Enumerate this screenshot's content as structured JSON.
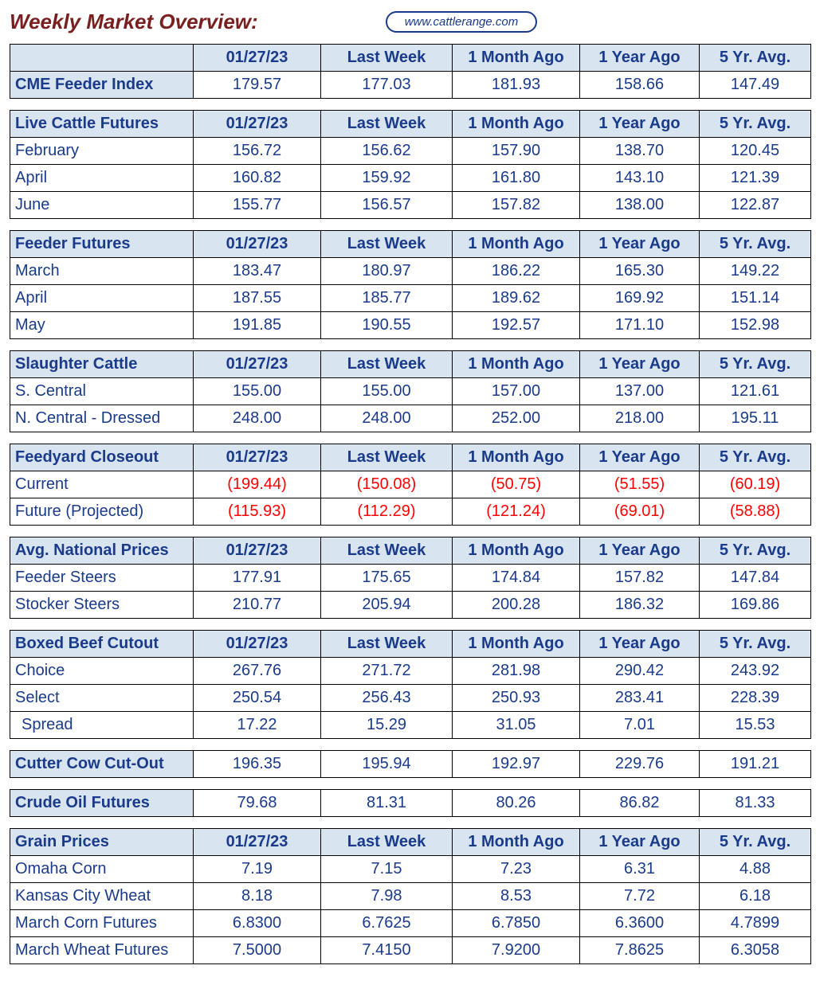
{
  "page_title": "Weekly Market Overview:",
  "source_url": "www.cattlerange.com",
  "columns": [
    "01/27/23",
    "Last Week",
    "1 Month Ago",
    "1 Year Ago",
    "5 Yr. Avg."
  ],
  "colors": {
    "title": "#7a1f1f",
    "header_bg": "#d8e4f0",
    "text": "#1a3a8a",
    "negative": "#ff0000",
    "border": "#000000",
    "background": "#ffffff"
  },
  "sections": [
    {
      "header_label": "",
      "show_header": true,
      "rows": [
        {
          "label": "CME Feeder Index",
          "is_header_row": true,
          "values": [
            "179.57",
            "177.03",
            "181.93",
            "158.66",
            "147.49"
          ]
        }
      ]
    },
    {
      "header_label": "Live Cattle Futures",
      "show_header": true,
      "rows": [
        {
          "label": "February",
          "values": [
            "156.72",
            "156.62",
            "157.90",
            "138.70",
            "120.45"
          ]
        },
        {
          "label": "April",
          "values": [
            "160.82",
            "159.92",
            "161.80",
            "143.10",
            "121.39"
          ]
        },
        {
          "label": "June",
          "values": [
            "155.77",
            "156.57",
            "157.82",
            "138.00",
            "122.87"
          ]
        }
      ]
    },
    {
      "header_label": "Feeder Futures",
      "show_header": true,
      "rows": [
        {
          "label": "March",
          "values": [
            "183.47",
            "180.97",
            "186.22",
            "165.30",
            "149.22"
          ]
        },
        {
          "label": "April",
          "values": [
            "187.55",
            "185.77",
            "189.62",
            "169.92",
            "151.14"
          ]
        },
        {
          "label": "May",
          "values": [
            "191.85",
            "190.55",
            "192.57",
            "171.10",
            "152.98"
          ]
        }
      ]
    },
    {
      "header_label": "Slaughter Cattle",
      "show_header": true,
      "rows": [
        {
          "label": "S. Central",
          "values": [
            "155.00",
            "155.00",
            "157.00",
            "137.00",
            "121.61"
          ]
        },
        {
          "label": "N. Central - Dressed",
          "values": [
            "248.00",
            "248.00",
            "252.00",
            "218.00",
            "195.11"
          ]
        }
      ]
    },
    {
      "header_label": "Feedyard Closeout",
      "show_header": true,
      "rows": [
        {
          "label": "Current",
          "negative": true,
          "values": [
            "(199.44)",
            "(150.08)",
            "(50.75)",
            "(51.55)",
            "(60.19)"
          ]
        },
        {
          "label": "Future (Projected)",
          "negative": true,
          "values": [
            "(115.93)",
            "(112.29)",
            "(121.24)",
            "(69.01)",
            "(58.88)"
          ]
        }
      ]
    },
    {
      "header_label": "Avg. National Prices",
      "show_header": true,
      "rows": [
        {
          "label": "Feeder Steers",
          "values": [
            "177.91",
            "175.65",
            "174.84",
            "157.82",
            "147.84"
          ]
        },
        {
          "label": "Stocker Steers",
          "values": [
            "210.77",
            "205.94",
            "200.28",
            "186.32",
            "169.86"
          ]
        }
      ]
    },
    {
      "header_label": "Boxed Beef Cutout",
      "show_header": true,
      "rows": [
        {
          "label": "Choice",
          "values": [
            "267.76",
            "271.72",
            "281.98",
            "290.42",
            "243.92"
          ]
        },
        {
          "label": "Select",
          "values": [
            "250.54",
            "256.43",
            "250.93",
            "283.41",
            "228.39"
          ]
        },
        {
          "label": " Spread",
          "indent": true,
          "values": [
            "17.22",
            "15.29",
            "31.05",
            "7.01",
            "15.53"
          ]
        }
      ]
    },
    {
      "header_label": "Cutter Cow Cut-Out",
      "single_row": true,
      "values": [
        "196.35",
        "195.94",
        "192.97",
        "229.76",
        "191.21"
      ]
    },
    {
      "header_label": "Crude Oil Futures",
      "single_row": true,
      "values": [
        "79.68",
        "81.31",
        "80.26",
        "86.82",
        "81.33"
      ]
    },
    {
      "header_label": "Grain Prices",
      "show_header": true,
      "rows": [
        {
          "label": "Omaha Corn",
          "values": [
            "7.19",
            "7.15",
            "7.23",
            "6.31",
            "4.88"
          ]
        },
        {
          "label": "Kansas City Wheat",
          "values": [
            "8.18",
            "7.98",
            "8.53",
            "7.72",
            "6.18"
          ]
        },
        {
          "label": "March Corn Futures",
          "values": [
            "6.8300",
            "6.7625",
            "6.7850",
            "6.3600",
            "4.7899"
          ]
        },
        {
          "label": "March Wheat Futures",
          "values": [
            "7.5000",
            "7.4150",
            "7.9200",
            "7.8625",
            "6.3058"
          ]
        }
      ]
    }
  ]
}
